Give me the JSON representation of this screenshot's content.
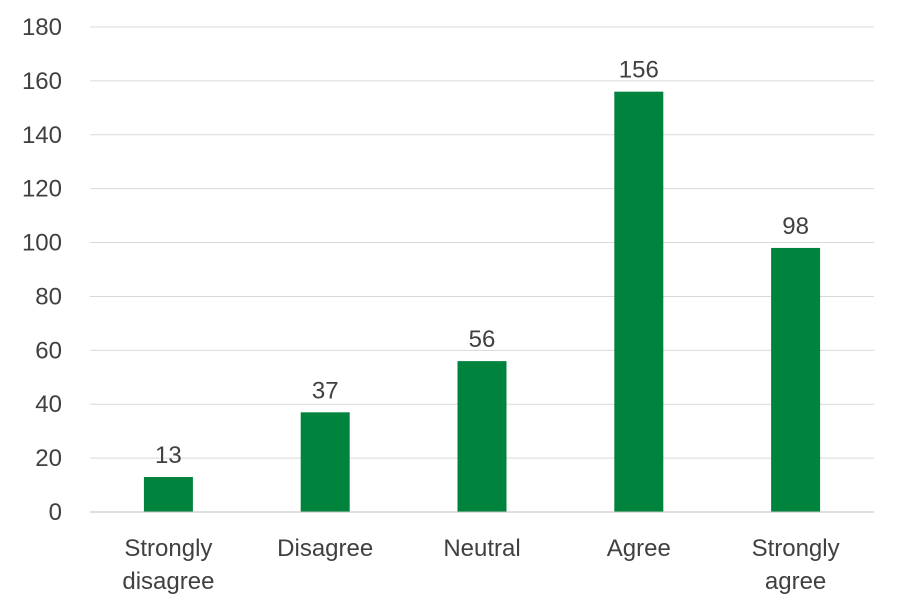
{
  "chart_data": {
    "type": "bar",
    "categories": [
      "Strongly disagree",
      "Disagree",
      "Neutral",
      "Agree",
      "Strongly agree"
    ],
    "category_lines": [
      [
        "Strongly",
        "disagree"
      ],
      [
        "Disagree"
      ],
      [
        "Neutral"
      ],
      [
        "Agree"
      ],
      [
        "Strongly",
        "agree"
      ]
    ],
    "values": [
      13,
      37,
      56,
      156,
      98
    ],
    "data_labels": [
      "13",
      "37",
      "56",
      "156",
      "98"
    ],
    "y_ticks": [
      "0",
      "20",
      "40",
      "60",
      "80",
      "100",
      "120",
      "140",
      "160",
      "180"
    ],
    "ylim": [
      0,
      180
    ],
    "title": "",
    "xlabel": "",
    "ylabel": "",
    "grid": true,
    "legend": "none",
    "bar_color": "#00843d"
  }
}
